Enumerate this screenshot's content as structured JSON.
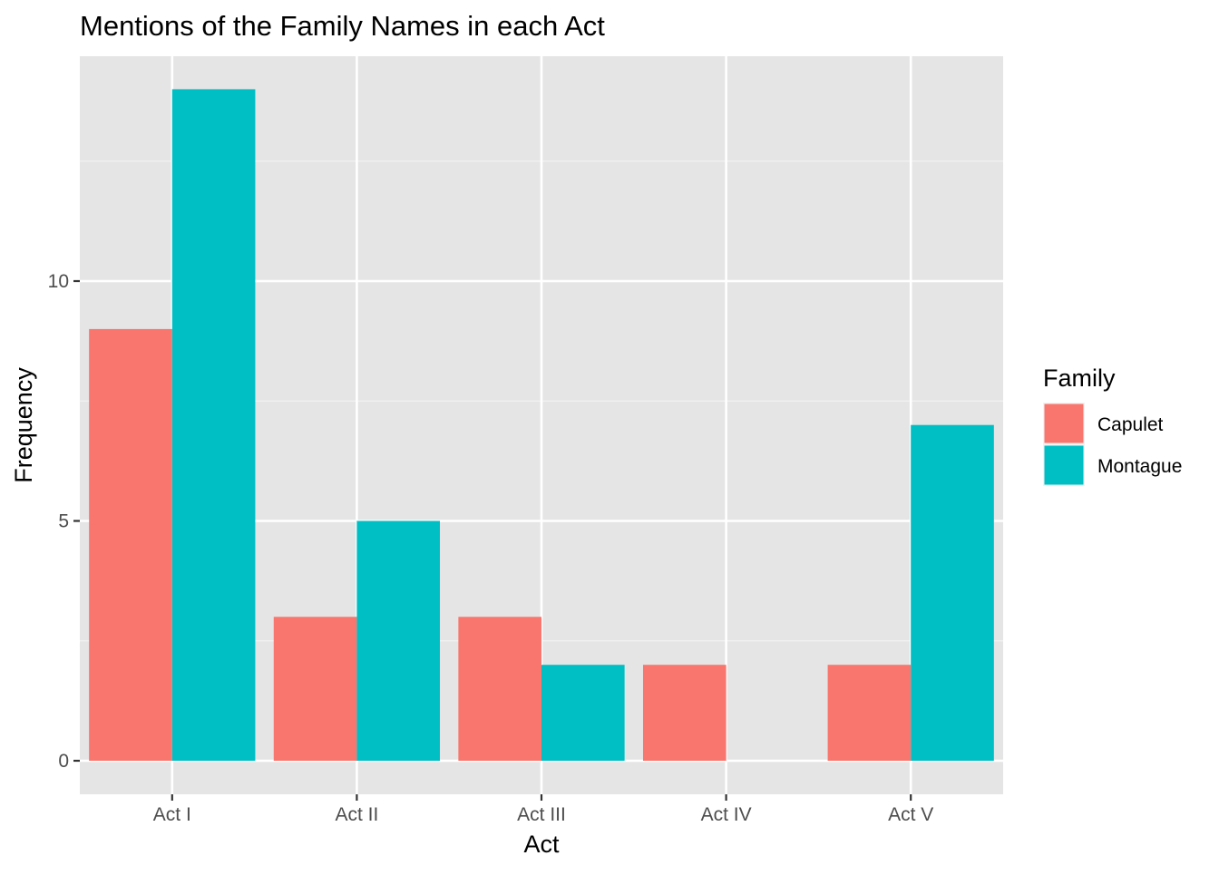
{
  "chart_data": {
    "type": "bar",
    "title": "Mentions of the Family Names in each Act",
    "xlabel": "Act",
    "ylabel": "Frequency",
    "categories": [
      "Act I",
      "Act II",
      "Act III",
      "Act IV",
      "Act V"
    ],
    "series": [
      {
        "name": "Capulet",
        "values": [
          9,
          3,
          3,
          2,
          2
        ],
        "color": "#F8766D"
      },
      {
        "name": "Montague",
        "values": [
          14,
          5,
          2,
          0,
          7
        ],
        "color": "#00BFC4"
      }
    ],
    "ylim": [
      -0.7,
      14.7
    ],
    "yticks": [
      0,
      5,
      10
    ],
    "legend": {
      "title": "Family",
      "position": "right"
    },
    "grid": true,
    "panel_background": "#EBEBEB"
  }
}
